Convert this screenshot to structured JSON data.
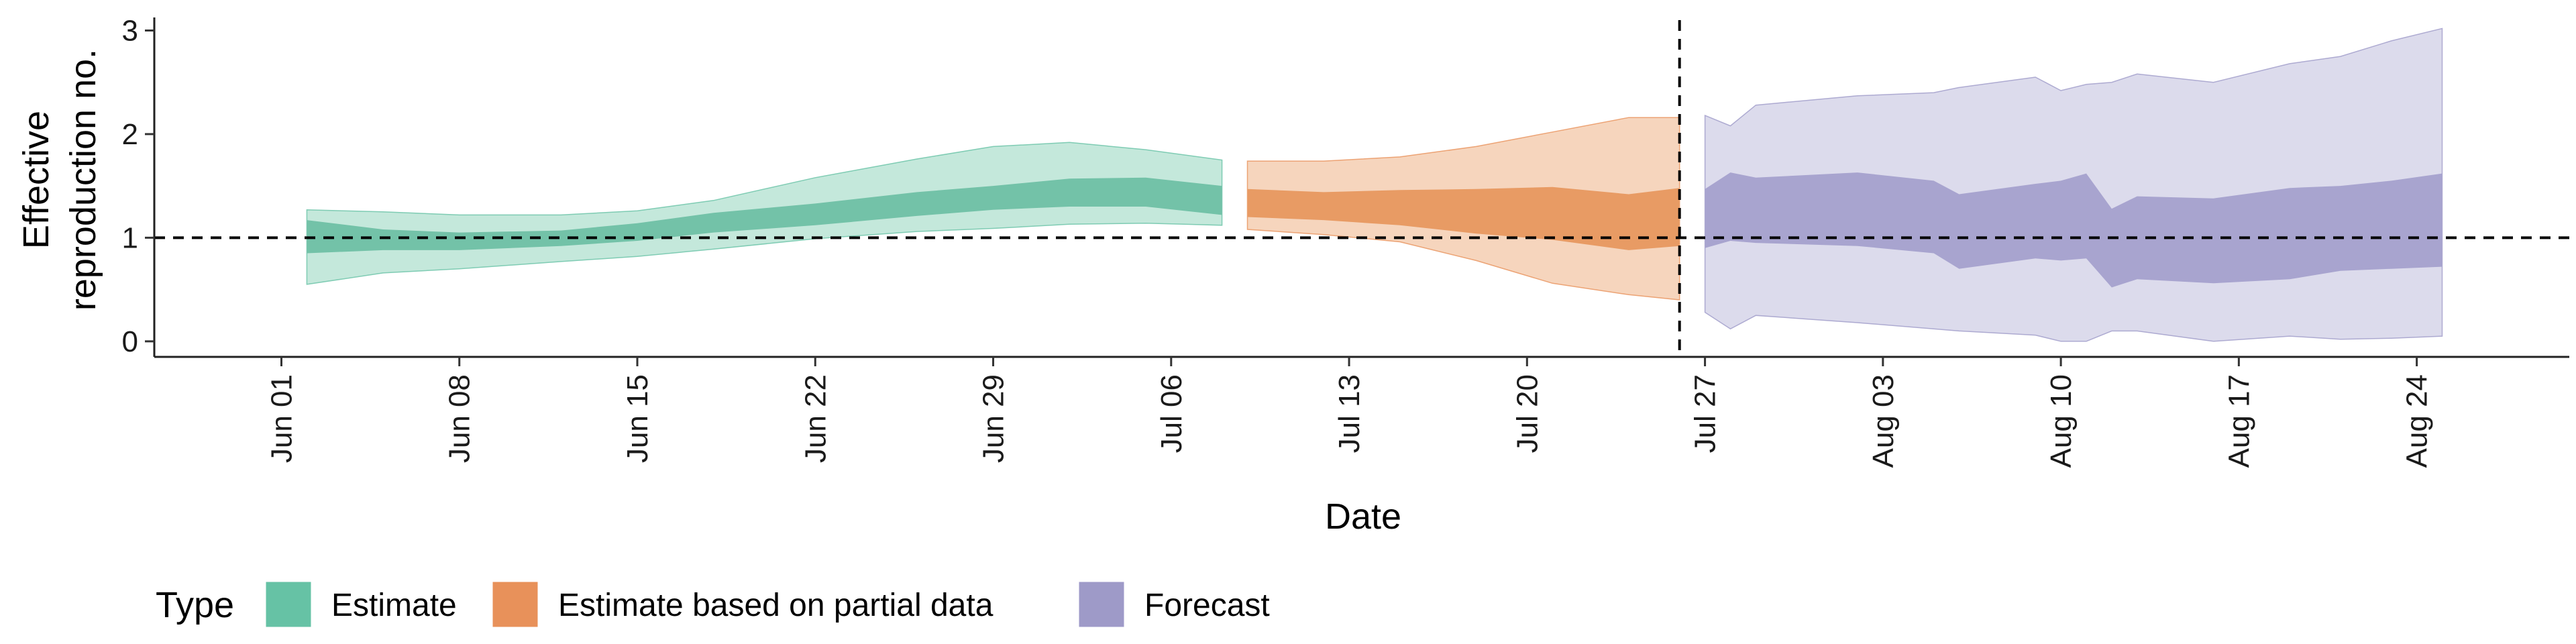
{
  "chart_data": {
    "type": "area",
    "xlabel": "Date",
    "ylabel_lines": [
      "Effective",
      "reproduction no."
    ],
    "x_range": [
      "2020-05-27",
      "2020-08-30"
    ],
    "ylim": [
      -0.15,
      3.1
    ],
    "y_ticks": [
      0,
      1,
      2,
      3
    ],
    "x_ticks": [
      {
        "date": "2020-06-01",
        "label": "Jun 01"
      },
      {
        "date": "2020-06-08",
        "label": "Jun 08"
      },
      {
        "date": "2020-06-15",
        "label": "Jun 15"
      },
      {
        "date": "2020-06-22",
        "label": "Jun 22"
      },
      {
        "date": "2020-06-29",
        "label": "Jun 29"
      },
      {
        "date": "2020-07-06",
        "label": "Jul 06"
      },
      {
        "date": "2020-07-13",
        "label": "Jul 13"
      },
      {
        "date": "2020-07-20",
        "label": "Jul 20"
      },
      {
        "date": "2020-07-27",
        "label": "Jul 27"
      },
      {
        "date": "2020-08-03",
        "label": "Aug 03"
      },
      {
        "date": "2020-08-10",
        "label": "Aug 10"
      },
      {
        "date": "2020-08-17",
        "label": "Aug 17"
      },
      {
        "date": "2020-08-24",
        "label": "Aug 24"
      }
    ],
    "reference_line_y": 1,
    "vertical_line_date": "2020-07-26",
    "grid": false,
    "legend": {
      "title": "Type",
      "position": "bottom-left",
      "entries": [
        {
          "label": "Estimate",
          "color": "#66c2a5"
        },
        {
          "label": "Estimate based on partial data",
          "color": "#e8915a"
        },
        {
          "label": "Forecast",
          "color": "#9e9ac8"
        }
      ]
    },
    "series": [
      {
        "type": "Estimate",
        "color_outer": "#c4e8db",
        "color_outer_edge": "#66c2a5",
        "color_inner": "#73c2a8",
        "points": [
          {
            "date": "2020-06-02",
            "lo90": 0.55,
            "hi90": 1.27,
            "lo50": 0.85,
            "hi50": 1.17
          },
          {
            "date": "2020-06-05",
            "lo90": 0.66,
            "hi90": 1.25,
            "lo50": 0.88,
            "hi50": 1.08
          },
          {
            "date": "2020-06-08",
            "lo90": 0.7,
            "hi90": 1.22,
            "lo50": 0.88,
            "hi50": 1.05
          },
          {
            "date": "2020-06-12",
            "lo90": 0.77,
            "hi90": 1.22,
            "lo50": 0.92,
            "hi50": 1.07
          },
          {
            "date": "2020-06-15",
            "lo90": 0.82,
            "hi90": 1.26,
            "lo50": 0.97,
            "hi50": 1.14
          },
          {
            "date": "2020-06-18",
            "lo90": 0.89,
            "hi90": 1.36,
            "lo50": 1.05,
            "hi50": 1.24
          },
          {
            "date": "2020-06-22",
            "lo90": 0.99,
            "hi90": 1.58,
            "lo50": 1.12,
            "hi50": 1.33
          },
          {
            "date": "2020-06-26",
            "lo90": 1.06,
            "hi90": 1.76,
            "lo50": 1.21,
            "hi50": 1.44
          },
          {
            "date": "2020-06-29",
            "lo90": 1.09,
            "hi90": 1.88,
            "lo50": 1.27,
            "hi50": 1.5
          },
          {
            "date": "2020-07-02",
            "lo90": 1.13,
            "hi90": 1.92,
            "lo50": 1.3,
            "hi50": 1.57
          },
          {
            "date": "2020-07-05",
            "lo90": 1.14,
            "hi90": 1.85,
            "lo50": 1.3,
            "hi50": 1.58
          },
          {
            "date": "2020-07-08",
            "lo90": 1.12,
            "hi90": 1.75,
            "lo50": 1.22,
            "hi50": 1.5
          }
        ]
      },
      {
        "type": "Estimate based on partial data",
        "color_outer": "#f6d5bd",
        "color_outer_edge": "#e8915a",
        "color_inner": "#e89b64",
        "points": [
          {
            "date": "2020-07-09",
            "lo90": 1.08,
            "hi90": 1.74,
            "lo50": 1.2,
            "hi50": 1.47
          },
          {
            "date": "2020-07-12",
            "lo90": 1.03,
            "hi90": 1.74,
            "lo50": 1.17,
            "hi50": 1.44
          },
          {
            "date": "2020-07-15",
            "lo90": 0.96,
            "hi90": 1.78,
            "lo50": 1.12,
            "hi50": 1.46
          },
          {
            "date": "2020-07-18",
            "lo90": 0.78,
            "hi90": 1.88,
            "lo50": 1.04,
            "hi50": 1.47
          },
          {
            "date": "2020-07-21",
            "lo90": 0.56,
            "hi90": 2.02,
            "lo50": 0.98,
            "hi50": 1.49
          },
          {
            "date": "2020-07-24",
            "lo90": 0.45,
            "hi90": 2.16,
            "lo50": 0.88,
            "hi50": 1.42
          },
          {
            "date": "2020-07-26",
            "lo90": 0.4,
            "hi90": 2.16,
            "lo50": 0.92,
            "hi50": 1.48
          }
        ]
      },
      {
        "type": "Forecast",
        "color_outer": "#dcdbec",
        "color_outer_edge": "#9e9ac8",
        "color_inner": "#a8a4cf",
        "points": [
          {
            "date": "2020-07-27",
            "lo90": 0.28,
            "hi90": 2.18,
            "lo50": 0.9,
            "hi50": 1.47
          },
          {
            "date": "2020-07-28",
            "lo90": 0.12,
            "hi90": 2.08,
            "lo50": 0.97,
            "hi50": 1.63
          },
          {
            "date": "2020-07-29",
            "lo90": 0.25,
            "hi90": 2.28,
            "lo50": 0.95,
            "hi50": 1.58
          },
          {
            "date": "2020-08-02",
            "lo90": 0.18,
            "hi90": 2.37,
            "lo50": 0.92,
            "hi50": 1.63
          },
          {
            "date": "2020-08-05",
            "lo90": 0.12,
            "hi90": 2.4,
            "lo50": 0.85,
            "hi50": 1.55
          },
          {
            "date": "2020-08-06",
            "lo90": 0.1,
            "hi90": 2.45,
            "lo50": 0.7,
            "hi50": 1.42
          },
          {
            "date": "2020-08-09",
            "lo90": 0.06,
            "hi90": 2.55,
            "lo50": 0.8,
            "hi50": 1.52
          },
          {
            "date": "2020-08-10",
            "lo90": 0.0,
            "hi90": 2.42,
            "lo50": 0.78,
            "hi50": 1.55
          },
          {
            "date": "2020-08-11",
            "lo90": 0.0,
            "hi90": 2.48,
            "lo50": 0.8,
            "hi50": 1.62
          },
          {
            "date": "2020-08-12",
            "lo90": 0.1,
            "hi90": 2.5,
            "lo50": 0.52,
            "hi50": 1.28
          },
          {
            "date": "2020-08-13",
            "lo90": 0.1,
            "hi90": 2.58,
            "lo50": 0.6,
            "hi50": 1.4
          },
          {
            "date": "2020-08-16",
            "lo90": 0.0,
            "hi90": 2.5,
            "lo50": 0.56,
            "hi50": 1.38
          },
          {
            "date": "2020-08-19",
            "lo90": 0.05,
            "hi90": 2.68,
            "lo50": 0.6,
            "hi50": 1.48
          },
          {
            "date": "2020-08-21",
            "lo90": 0.02,
            "hi90": 2.75,
            "lo50": 0.68,
            "hi50": 1.5
          },
          {
            "date": "2020-08-23",
            "lo90": 0.03,
            "hi90": 2.9,
            "lo50": 0.7,
            "hi50": 1.55
          },
          {
            "date": "2020-08-25",
            "lo90": 0.05,
            "hi90": 3.02,
            "lo50": 0.72,
            "hi50": 1.62
          }
        ]
      }
    ]
  }
}
